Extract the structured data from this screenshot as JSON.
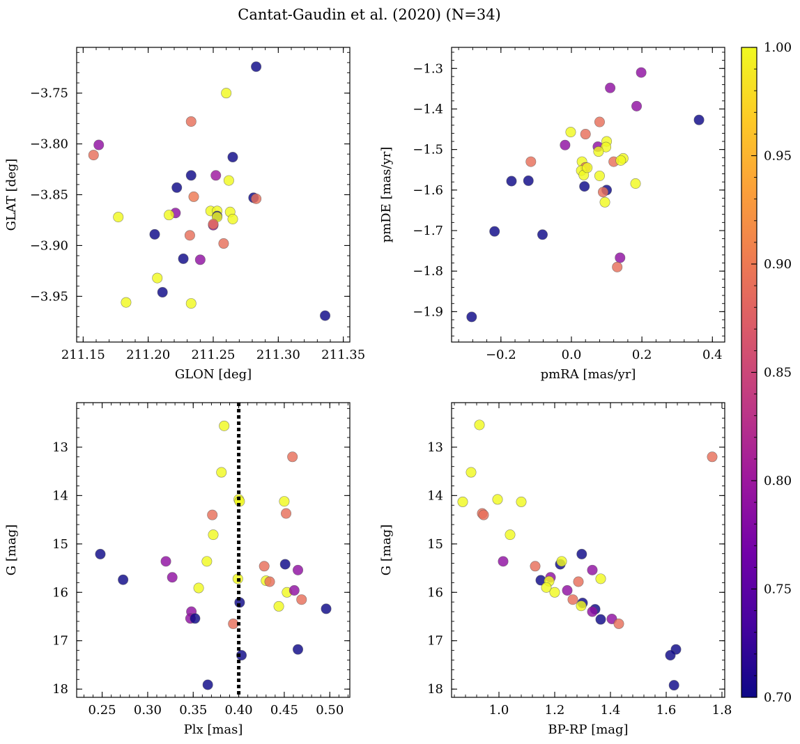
{
  "title": "Cantat-Gaudin et al. (2020) (N=34)",
  "colors": {
    "cmap": [
      "#0d0887",
      "#46039f",
      "#7201a8",
      "#9c179e",
      "#bd3786",
      "#d8576b",
      "#ed7953",
      "#fb9f3a",
      "#fdca26",
      "#f0f921"
    ],
    "edge": "#555555",
    "text": "#000000",
    "marker_line": "#000000"
  },
  "colorbar": {
    "min": 0.7,
    "max": 1.0,
    "ticks": [
      0.7,
      0.75,
      0.8,
      0.85,
      0.9,
      0.95,
      1.0
    ],
    "tick_labels": [
      "0.70",
      "0.75",
      "0.80",
      "0.85",
      "0.90",
      "0.95",
      "1.00"
    ]
  },
  "chart_data": [
    {
      "type": "scatter",
      "xlabel": "GLON [deg]",
      "ylabel": "GLAT [deg]",
      "xlim": [
        211.145,
        211.355
      ],
      "ylim": [
        -3.995,
        -3.705
      ],
      "xticks": [
        211.15,
        211.2,
        211.25,
        211.3,
        211.35
      ],
      "xtick_labels": [
        "211.15",
        "211.20",
        "211.25",
        "211.30",
        "211.35"
      ],
      "yticks": [
        -3.75,
        -3.8,
        -3.85,
        -3.9,
        -3.95
      ],
      "ytick_labels": [
        "−3.75",
        "−3.80",
        "−3.85",
        "−3.90",
        "−3.95"
      ],
      "x": [
        211.283,
        211.26,
        211.233,
        211.162,
        211.158,
        211.265,
        211.233,
        211.252,
        211.222,
        211.262,
        211.235,
        211.281,
        211.283,
        211.248,
        211.253,
        211.263,
        211.221,
        211.216,
        211.177,
        211.253,
        211.253,
        211.265,
        211.25,
        211.258,
        211.205,
        211.232,
        211.227,
        211.24,
        211.207,
        211.211,
        211.183,
        211.233,
        211.336,
        211.25
      ],
      "y": [
        -3.724,
        -3.75,
        -3.778,
        -3.801,
        -3.811,
        -3.813,
        -3.831,
        -3.831,
        -3.843,
        -3.836,
        -3.852,
        -3.853,
        -3.854,
        -3.866,
        -3.866,
        -3.867,
        -3.868,
        -3.87,
        -3.872,
        -3.871,
        -3.872,
        -3.874,
        -3.88,
        -3.898,
        -3.889,
        -3.89,
        -3.913,
        -3.914,
        -3.932,
        -3.946,
        -3.956,
        -3.957,
        -3.969,
        -3.879
      ],
      "c": [
        0.7,
        1.0,
        0.89,
        0.79,
        0.89,
        0.7,
        0.7,
        0.8,
        0.7,
        1.0,
        0.9,
        0.7,
        0.89,
        1.0,
        1.0,
        1.0,
        0.79,
        1.0,
        1.0,
        0.7,
        1.0,
        1.0,
        0.79,
        0.89,
        0.7,
        0.89,
        0.7,
        0.79,
        1.0,
        0.7,
        1.0,
        1.0,
        0.7,
        0.89
      ]
    },
    {
      "type": "scatter",
      "xlabel": "pmRA [mas/yr]",
      "ylabel": "pmDE [mas/yr]",
      "xlim": [
        -0.34,
        0.435
      ],
      "ylim": [
        -1.975,
        -1.248
      ],
      "xticks": [
        -0.2,
        0.0,
        0.2,
        0.4
      ],
      "xtick_labels": [
        "−0.2",
        "0.0",
        "0.2",
        "0.4"
      ],
      "yticks": [
        -1.3,
        -1.4,
        -1.5,
        -1.6,
        -1.7,
        -1.8,
        -1.9
      ],
      "ytick_labels": [
        "−1.3",
        "−1.4",
        "−1.5",
        "−1.6",
        "−1.7",
        "−1.8",
        "−1.9"
      ],
      "x": [
        0.198,
        0.11,
        0.185,
        0.362,
        0.08,
        -0.002,
        0.04,
        0.075,
        -0.018,
        0.1,
        0.098,
        0.077,
        0.03,
        0.147,
        -0.115,
        0.12,
        0.14,
        0.04,
        0.028,
        0.035,
        0.08,
        -0.17,
        -0.122,
        0.037,
        0.1,
        0.182,
        0.09,
        0.095,
        -0.218,
        -0.082,
        0.138,
        0.13,
        -0.283,
        0.045
      ],
      "y": [
        -1.31,
        -1.348,
        -1.393,
        -1.427,
        -1.432,
        -1.457,
        -1.462,
        -1.493,
        -1.489,
        -1.48,
        -1.494,
        -1.505,
        -1.53,
        -1.522,
        -1.53,
        -1.53,
        -1.527,
        -1.544,
        -1.552,
        -1.563,
        -1.565,
        -1.578,
        -1.577,
        -1.591,
        -1.6,
        -1.584,
        -1.605,
        -1.63,
        -1.702,
        -1.71,
        -1.767,
        -1.79,
        -1.913,
        -1.545
      ],
      "c": [
        0.79,
        0.79,
        0.79,
        0.7,
        0.89,
        1.0,
        0.89,
        0.79,
        0.79,
        1.0,
        1.0,
        1.0,
        1.0,
        1.0,
        0.89,
        0.89,
        1.0,
        0.89,
        1.0,
        1.0,
        1.0,
        0.7,
        0.7,
        0.7,
        0.7,
        1.0,
        0.89,
        1.0,
        0.7,
        0.7,
        0.79,
        0.89,
        0.7,
        1.0
      ]
    },
    {
      "type": "scatter",
      "xlabel": "Plx [mas]",
      "ylabel": "G [mag]",
      "xlim": [
        0.222,
        0.522
      ],
      "ylim": [
        18.17,
        12.08
      ],
      "invert_y": true,
      "vline": 0.4,
      "xticks": [
        0.25,
        0.3,
        0.35,
        0.4,
        0.45,
        0.5
      ],
      "xtick_labels": [
        "0.25",
        "0.30",
        "0.35",
        "0.40",
        "0.45",
        "0.50"
      ],
      "yticks": [
        13,
        14,
        15,
        16,
        17,
        18
      ],
      "ytick_labels": [
        "13",
        "14",
        "15",
        "16",
        "17",
        "18"
      ],
      "x": [
        0.384,
        0.459,
        0.381,
        0.4,
        0.401,
        0.45,
        0.371,
        0.452,
        0.372,
        0.248,
        0.451,
        0.32,
        0.365,
        0.428,
        0.465,
        0.327,
        0.273,
        0.399,
        0.43,
        0.434,
        0.356,
        0.453,
        0.461,
        0.469,
        0.401,
        0.444,
        0.348,
        0.394,
        0.347,
        0.352,
        0.496,
        0.465,
        0.403,
        0.366
      ],
      "y": [
        12.56,
        13.2,
        13.52,
        14.08,
        14.12,
        14.12,
        14.4,
        14.37,
        14.81,
        15.21,
        15.42,
        15.36,
        15.36,
        15.46,
        15.54,
        15.69,
        15.74,
        15.72,
        15.76,
        15.78,
        15.91,
        16.0,
        15.96,
        16.15,
        16.21,
        16.29,
        16.4,
        16.65,
        16.54,
        16.54,
        16.34,
        17.18,
        17.3,
        17.91
      ],
      "c": [
        1.0,
        0.89,
        1.0,
        1.0,
        1.0,
        1.0,
        0.89,
        0.89,
        1.0,
        0.7,
        0.7,
        0.79,
        1.0,
        0.89,
        0.79,
        0.79,
        0.7,
        1.0,
        1.0,
        0.89,
        1.0,
        1.0,
        0.79,
        0.89,
        0.7,
        1.0,
        0.79,
        0.89,
        0.79,
        0.7,
        0.7,
        0.7,
        0.7,
        0.7
      ]
    },
    {
      "type": "scatter",
      "xlabel": "BP-RP [mag]",
      "ylabel": "G [mag]",
      "xlim": [
        0.83,
        1.81
      ],
      "ylim": [
        18.17,
        12.08
      ],
      "invert_y": true,
      "xticks": [
        1.0,
        1.2,
        1.4,
        1.6,
        1.8
      ],
      "xtick_labels": [
        "1.0",
        "1.2",
        "1.4",
        "1.6",
        "1.8"
      ],
      "yticks": [
        13,
        14,
        15,
        16,
        17,
        18
      ],
      "ytick_labels": [
        "13",
        "14",
        "15",
        "16",
        "17",
        "18"
      ],
      "x": [
        0.93,
        1.765,
        0.9,
        0.87,
        0.995,
        1.08,
        0.94,
        0.945,
        1.04,
        1.297,
        1.015,
        1.22,
        1.13,
        1.335,
        1.225,
        1.185,
        1.365,
        1.15,
        1.18,
        1.285,
        1.17,
        1.245,
        1.2,
        1.265,
        1.3,
        1.295,
        1.345,
        1.335,
        1.405,
        1.365,
        1.43,
        1.635,
        1.615,
        1.628
      ],
      "y": [
        12.54,
        13.2,
        13.52,
        14.13,
        14.08,
        14.13,
        14.37,
        14.4,
        14.81,
        15.21,
        15.36,
        15.42,
        15.46,
        15.54,
        15.36,
        15.69,
        15.72,
        15.75,
        15.77,
        15.78,
        15.9,
        15.96,
        16.0,
        16.15,
        16.22,
        16.28,
        16.35,
        16.4,
        16.55,
        16.56,
        16.65,
        17.18,
        17.3,
        17.92
      ],
      "c": [
        1.0,
        0.89,
        1.0,
        1.0,
        1.0,
        1.0,
        0.89,
        0.89,
        1.0,
        0.7,
        0.79,
        0.7,
        0.89,
        0.79,
        1.0,
        0.79,
        1.0,
        0.7,
        1.0,
        0.89,
        1.0,
        0.79,
        1.0,
        0.89,
        0.7,
        1.0,
        0.7,
        0.79,
        0.79,
        0.7,
        0.89,
        0.7,
        0.7,
        0.7
      ]
    }
  ]
}
